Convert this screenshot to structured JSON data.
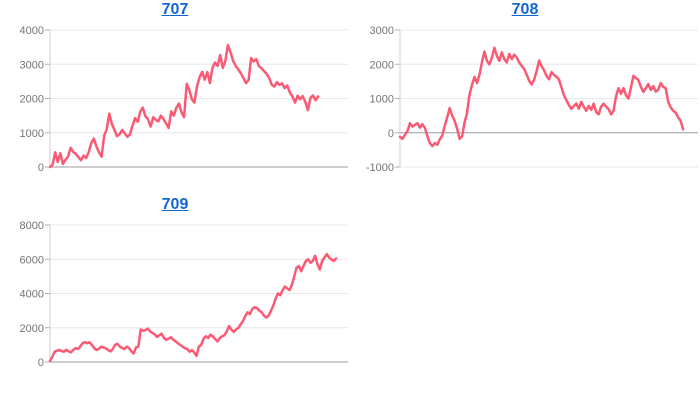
{
  "colors": {
    "line": "#fa5a73",
    "grid": "#e8e8e8",
    "zero_axis": "#9b9b9b",
    "axis_line": "#cfcfcf",
    "tick": "#b0b0b0",
    "axis_label": "#757575",
    "link": "#1266d4",
    "background": "#ffffff"
  },
  "chart_data": [
    {
      "id": "707",
      "title": "707",
      "type": "line",
      "xlabel": "",
      "ylabel": "",
      "ylim": [
        0,
        4000
      ],
      "yticks": [
        0,
        1000,
        2000,
        3000,
        4000
      ],
      "grid": true,
      "legend": false,
      "x_end_fraction": 0.9,
      "values": [
        0,
        60,
        430,
        150,
        400,
        90,
        210,
        310,
        560,
        440,
        380,
        290,
        200,
        330,
        260,
        430,
        700,
        830,
        600,
        430,
        300,
        920,
        1100,
        1560,
        1250,
        1080,
        900,
        960,
        1080,
        980,
        880,
        950,
        1200,
        1430,
        1320,
        1620,
        1730,
        1480,
        1400,
        1180,
        1450,
        1380,
        1330,
        1500,
        1400,
        1280,
        1140,
        1620,
        1500,
        1730,
        1850,
        1600,
        1450,
        2430,
        2250,
        1980,
        1880,
        2350,
        2620,
        2780,
        2550,
        2770,
        2450,
        2900,
        3050,
        2950,
        3270,
        2890,
        3100,
        3560,
        3350,
        3100,
        2950,
        2850,
        2740,
        2600,
        2450,
        2540,
        3180,
        3080,
        3150,
        2950,
        2880,
        2800,
        2720,
        2600,
        2400,
        2350,
        2480,
        2400,
        2440,
        2300,
        2380,
        2180,
        2060,
        1880,
        2080,
        1980,
        2070,
        1900,
        1660,
        2020,
        2090,
        1950,
        2060
      ]
    },
    {
      "id": "708",
      "title": "708",
      "type": "line",
      "xlabel": "",
      "ylabel": "",
      "ylim": [
        -1000,
        3000
      ],
      "yticks": [
        -1000,
        0,
        1000,
        2000,
        3000
      ],
      "grid": true,
      "legend": false,
      "x_end_fraction": 0.95,
      "values": [
        -120,
        -180,
        -60,
        50,
        280,
        180,
        230,
        280,
        150,
        250,
        150,
        -90,
        -300,
        -390,
        -300,
        -350,
        -200,
        -90,
        200,
        450,
        720,
        500,
        350,
        120,
        -180,
        -100,
        300,
        570,
        1110,
        1400,
        1630,
        1450,
        1700,
        2050,
        2370,
        2100,
        2000,
        2200,
        2480,
        2250,
        2100,
        2350,
        2150,
        2050,
        2300,
        2150,
        2280,
        2200,
        2050,
        1950,
        1860,
        1700,
        1520,
        1410,
        1550,
        1800,
        2110,
        1950,
        1830,
        1660,
        1560,
        1770,
        1690,
        1640,
        1560,
        1330,
        1100,
        950,
        810,
        700,
        780,
        850,
        700,
        900,
        760,
        640,
        780,
        670,
        850,
        600,
        540,
        760,
        850,
        760,
        690,
        540,
        650,
        1060,
        1300,
        1140,
        1300,
        1090,
        1000,
        1310,
        1660,
        1600,
        1540,
        1340,
        1190,
        1300,
        1420,
        1250,
        1360,
        1200,
        1260,
        1450,
        1340,
        1300,
        900,
        740,
        640,
        590,
        450,
        350,
        100
      ]
    },
    {
      "id": "709",
      "title": "709",
      "type": "line",
      "xlabel": "",
      "ylabel": "",
      "ylim": [
        0,
        8000
      ],
      "yticks": [
        0,
        2000,
        4000,
        6000,
        8000
      ],
      "grid": true,
      "legend": false,
      "x_end_fraction": 0.96,
      "values": [
        60,
        300,
        600,
        660,
        700,
        640,
        600,
        710,
        620,
        560,
        700,
        810,
        760,
        900,
        1100,
        1160,
        1100,
        1150,
        1000,
        820,
        700,
        760,
        900,
        850,
        800,
        700,
        620,
        760,
        1000,
        1060,
        900,
        820,
        760,
        900,
        800,
        620,
        500,
        860,
        900,
        1900,
        1820,
        1860,
        1950,
        1800,
        1700,
        1620,
        1460,
        1560,
        1650,
        1400,
        1300,
        1360,
        1450,
        1300,
        1200,
        1100,
        1000,
        900,
        800,
        760,
        600,
        700,
        560,
        350,
        900,
        1000,
        1360,
        1500,
        1400,
        1600,
        1500,
        1350,
        1200,
        1400,
        1500,
        1560,
        1800,
        2100,
        1900,
        1760,
        1900,
        2000,
        2200,
        2400,
        2700,
        2900,
        2800,
        3100,
        3200,
        3150,
        3000,
        2900,
        2700,
        2600,
        2700,
        3000,
        3300,
        3700,
        4000,
        3900,
        4200,
        4400,
        4300,
        4200,
        4500,
        5000,
        5500,
        5600,
        5300,
        5600,
        5900,
        6000,
        5800,
        5900,
        6200,
        5700,
        5400,
        5900,
        6100,
        6300,
        6100,
        6000,
        5900,
        6050
      ]
    }
  ]
}
